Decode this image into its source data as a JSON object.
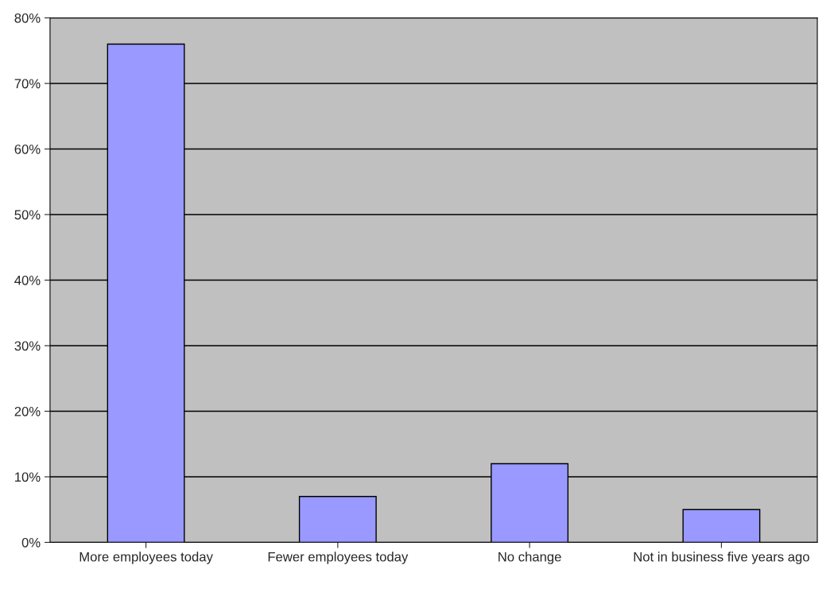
{
  "chart_data": {
    "type": "bar",
    "categories": [
      "More employees today",
      "Fewer employees today",
      "No change",
      "Not in business five years ago"
    ],
    "values": [
      76,
      7,
      12,
      5
    ],
    "color": "#9999ff",
    "ylim": [
      0,
      80
    ],
    "yticks": [
      {
        "value": 0,
        "label": "0%"
      },
      {
        "value": 10,
        "label": "10%"
      },
      {
        "value": 20,
        "label": "20%"
      },
      {
        "value": 30,
        "label": "30%"
      },
      {
        "value": 40,
        "label": "40%"
      },
      {
        "value": 50,
        "label": "50%"
      },
      {
        "value": 60,
        "label": "60%"
      },
      {
        "value": 70,
        "label": "70%"
      },
      {
        "value": 80,
        "label": "80%"
      }
    ],
    "grid": "y"
  }
}
